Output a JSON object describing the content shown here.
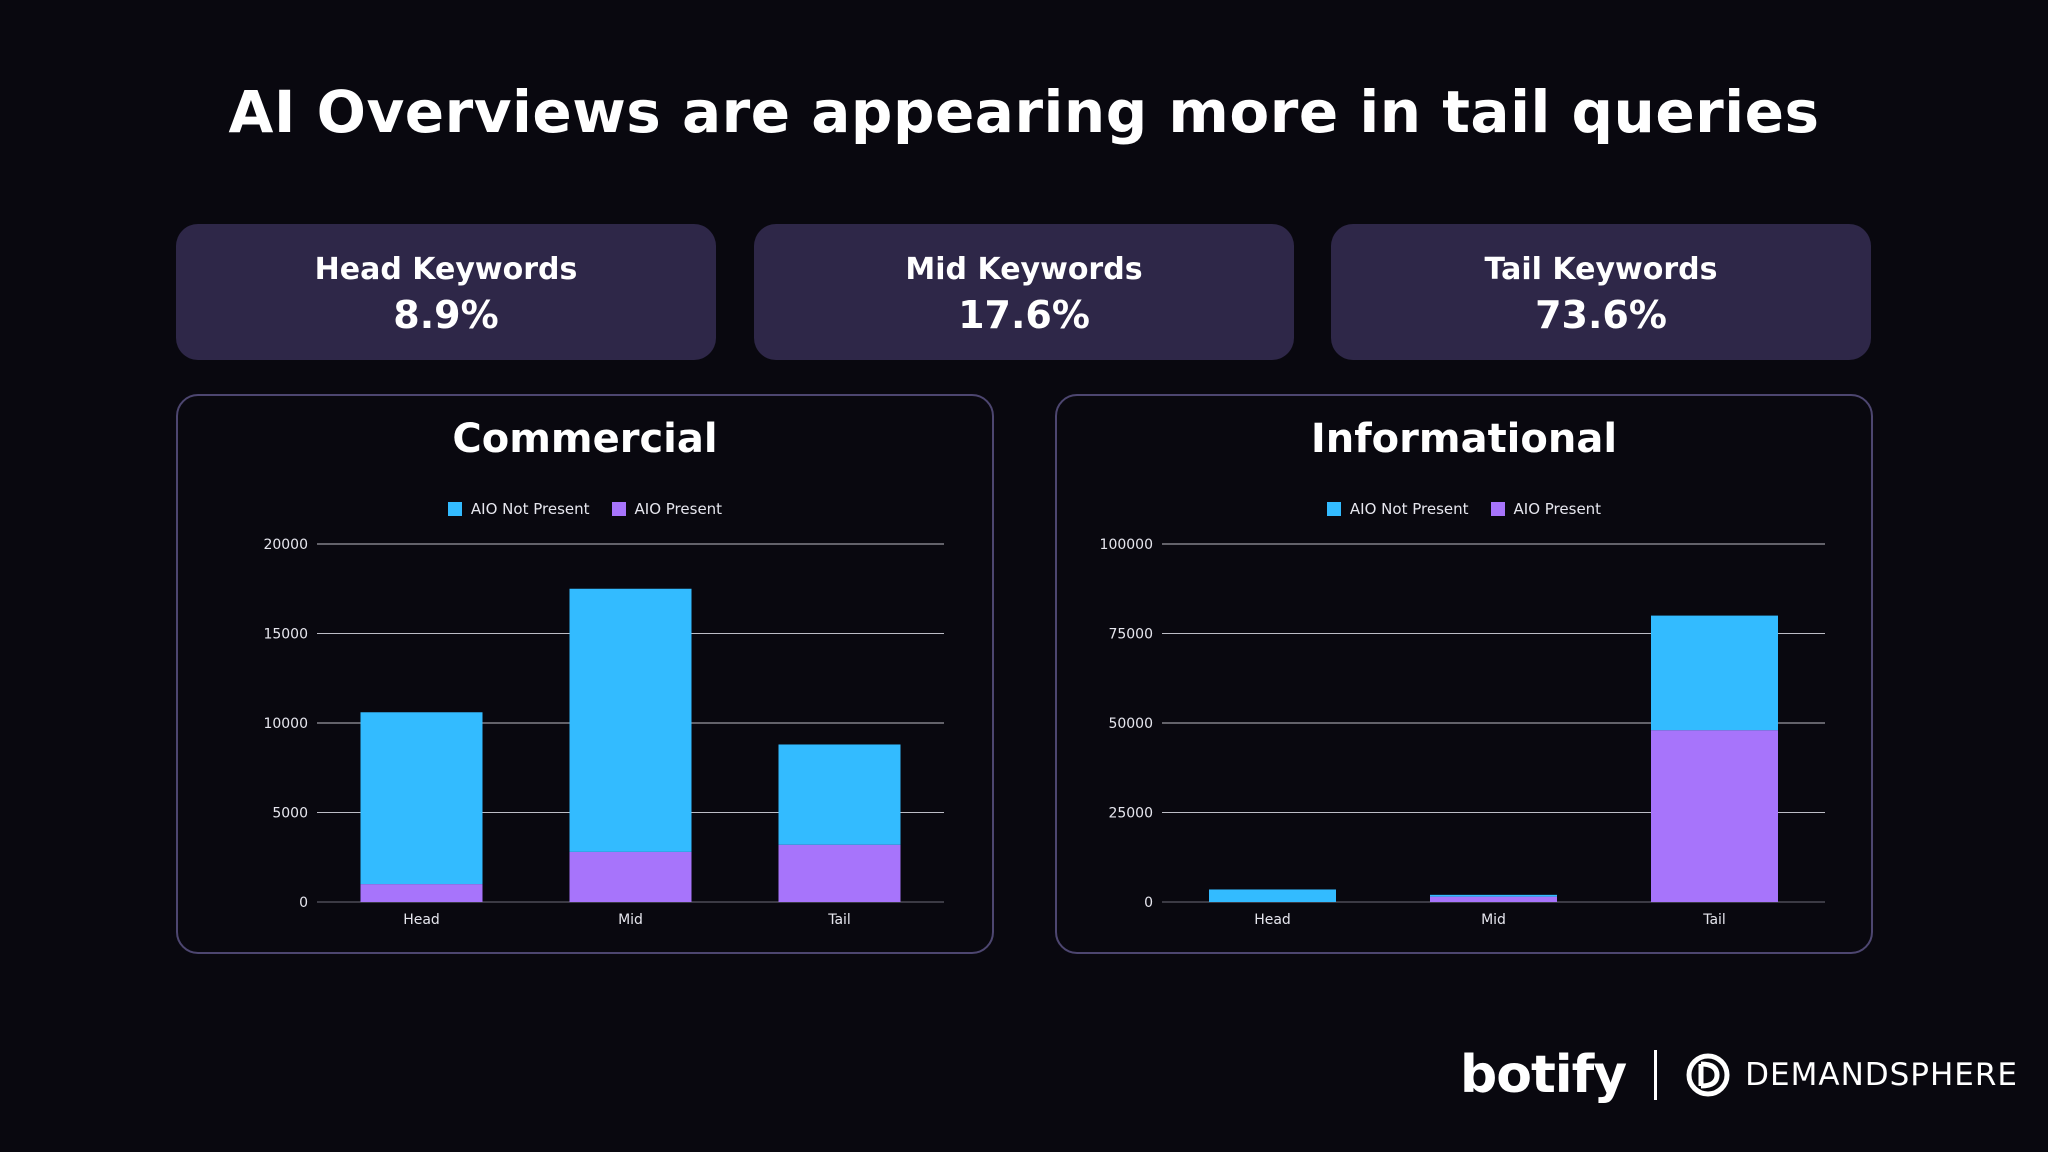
{
  "title": "AI Overviews are appearing more in tail queries",
  "stats": [
    {
      "label": "Head Keywords",
      "value": "8.9%"
    },
    {
      "label": "Mid Keywords",
      "value": "17.6%"
    },
    {
      "label": "Tail Keywords",
      "value": "73.6%"
    }
  ],
  "colors": {
    "not_present": "#33bbff",
    "present": "#a774fb"
  },
  "chart_data": [
    {
      "type": "bar",
      "stacked": true,
      "title": "Commercial",
      "categories": [
        "Head",
        "Mid",
        "Tail"
      ],
      "series": [
        {
          "name": "AIO Not Present",
          "values": [
            9600,
            14700,
            5600
          ]
        },
        {
          "name": "AIO Present",
          "values": [
            1000,
            2800,
            3200
          ]
        }
      ],
      "yticks": [
        0,
        5000,
        10000,
        15000,
        20000
      ],
      "ylim": [
        0,
        20000
      ],
      "legend": "top-center",
      "grid": true
    },
    {
      "type": "bar",
      "stacked": true,
      "title": "Informational",
      "categories": [
        "Head",
        "Mid",
        "Tail"
      ],
      "series": [
        {
          "name": "AIO Not Present",
          "values": [
            3500,
            500,
            32000
          ]
        },
        {
          "name": "AIO Present",
          "values": [
            0,
            1500,
            48000
          ]
        }
      ],
      "yticks": [
        0,
        25000,
        50000,
        75000,
        100000
      ],
      "ylim": [
        0,
        100000
      ],
      "legend": "top-center",
      "grid": true
    }
  ],
  "logos": {
    "botify": "botify",
    "demandsphere": "DEMANDSPHERE"
  }
}
